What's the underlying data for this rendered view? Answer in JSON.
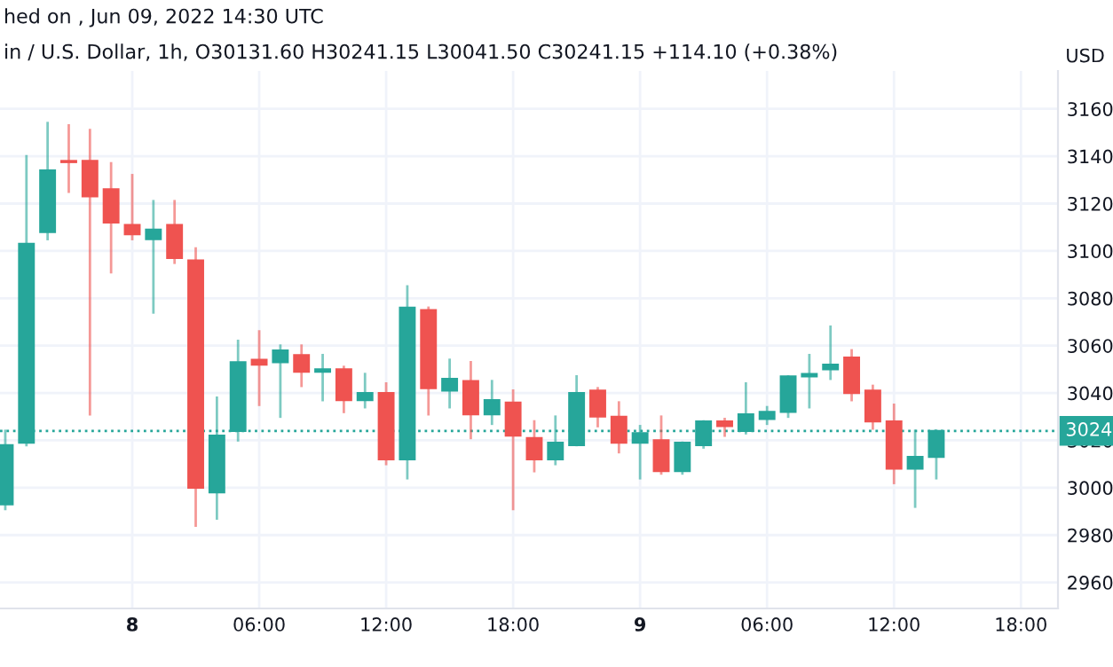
{
  "chart_data": {
    "type": "candlestick",
    "annotations": [
      "hed on , Jun 09, 2022 14:30 UTC",
      "in / U.S. Dollar, 1h, O30131.60 H30241.15 L30041.50 C30241.15 +114.10 (+0.38%)"
    ],
    "ylabel": "USD",
    "x": [
      "2022-06-07T18:00",
      "2022-06-07T19:00",
      "2022-06-07T20:00",
      "2022-06-07T21:00",
      "2022-06-07T22:00",
      "2022-06-07T23:00",
      "2022-06-08T00:00",
      "2022-06-08T01:00",
      "2022-06-08T02:00",
      "2022-06-08T03:00",
      "2022-06-08T04:00",
      "2022-06-08T05:00",
      "2022-06-08T06:00",
      "2022-06-08T07:00",
      "2022-06-08T08:00",
      "2022-06-08T09:00",
      "2022-06-08T10:00",
      "2022-06-08T11:00",
      "2022-06-08T12:00",
      "2022-06-08T13:00",
      "2022-06-08T14:00",
      "2022-06-08T15:00",
      "2022-06-08T16:00",
      "2022-06-08T17:00",
      "2022-06-08T18:00",
      "2022-06-08T19:00",
      "2022-06-08T20:00",
      "2022-06-08T21:00",
      "2022-06-08T22:00",
      "2022-06-08T23:00",
      "2022-06-09T00:00",
      "2022-06-09T01:00",
      "2022-06-09T02:00",
      "2022-06-09T03:00",
      "2022-06-09T04:00",
      "2022-06-09T05:00",
      "2022-06-09T06:00",
      "2022-06-09T07:00",
      "2022-06-09T08:00",
      "2022-06-09T09:00",
      "2022-06-09T10:00",
      "2022-06-09T11:00",
      "2022-06-09T12:00",
      "2022-06-09T13:00",
      "2022-06-09T14:00"
    ],
    "ohlc": [
      [
        2993,
        3024,
        2991,
        3018
      ],
      [
        3019,
        3140,
        3018,
        3103
      ],
      [
        3108,
        3154,
        3105,
        3134
      ],
      [
        3138,
        3153,
        3125,
        3137.5
      ],
      [
        3138,
        3151,
        3031,
        3123
      ],
      [
        3126,
        3137,
        3091,
        3112
      ],
      [
        3111,
        3132,
        3105,
        3107
      ],
      [
        3105,
        3121,
        3074,
        3109
      ],
      [
        3111,
        3121,
        3095,
        3097
      ],
      [
        3096,
        3101,
        2984,
        3000
      ],
      [
        2998,
        3038,
        2987,
        3022
      ],
      [
        3024,
        3062,
        3020,
        3053
      ],
      [
        3054,
        3066,
        3035,
        3052
      ],
      [
        3053,
        3060,
        3030,
        3058
      ],
      [
        3056,
        3060,
        3043,
        3049
      ],
      [
        3049,
        3056,
        3037,
        3050
      ],
      [
        3050,
        3051,
        3032,
        3037
      ],
      [
        3037,
        3048,
        3034,
        3040
      ],
      [
        3040,
        3044,
        3010,
        3012
      ],
      [
        3012,
        3085,
        3004,
        3076
      ],
      [
        3075,
        3076,
        3031,
        3042
      ],
      [
        3041,
        3054,
        3034,
        3046
      ],
      [
        3045,
        3053,
        3021,
        3031
      ],
      [
        3031,
        3045,
        3027,
        3037
      ],
      [
        3036,
        3041,
        2991,
        3022
      ],
      [
        3021,
        3028,
        3007,
        3012
      ],
      [
        3012,
        3030,
        3010,
        3019
      ],
      [
        3018,
        3047,
        3018,
        3040
      ],
      [
        3041,
        3042,
        3026,
        3030
      ],
      [
        3030,
        3036,
        3015,
        3019
      ],
      [
        3019,
        3026,
        3004,
        3023
      ],
      [
        3020,
        3030,
        3006,
        3007
      ],
      [
        3007,
        3019,
        3006,
        3019
      ],
      [
        3018,
        3028,
        3017,
        3028
      ],
      [
        3028,
        3029,
        3022,
        3026
      ],
      [
        3024,
        3044,
        3023,
        3031
      ],
      [
        3029,
        3034,
        3027,
        3032
      ],
      [
        3032,
        3047,
        3030,
        3047
      ],
      [
        3047,
        3056,
        3034,
        3048
      ],
      [
        3050,
        3068,
        3046,
        3052
      ],
      [
        3055,
        3058,
        3037,
        3040
      ],
      [
        3041,
        3043,
        3025,
        3028
      ],
      [
        3028,
        3035,
        3002,
        3008
      ],
      [
        3008,
        3024,
        2992,
        3013
      ],
      [
        3013,
        3024,
        3004,
        3024
      ]
    ],
    "colors": [
      "#26a69a",
      "#26a69a",
      "#26a69a",
      "#ef5350",
      "#ef5350",
      "#ef5350",
      "#ef5350",
      "#26a69a",
      "#ef5350",
      "#ef5350",
      "#26a69a",
      "#26a69a",
      "#ef5350",
      "#26a69a",
      "#ef5350",
      "#26a69a",
      "#ef5350",
      "#26a69a",
      "#ef5350",
      "#26a69a",
      "#ef5350",
      "#26a69a",
      "#ef5350",
      "#26a69a",
      "#ef5350",
      "#ef5350",
      "#26a69a",
      "#26a69a",
      "#ef5350",
      "#ef5350",
      "#26a69a",
      "#ef5350",
      "#26a69a",
      "#26a69a",
      "#ef5350",
      "#26a69a",
      "#26a69a",
      "#26a69a",
      "#26a69a",
      "#26a69a",
      "#ef5350",
      "#ef5350",
      "#ef5350",
      "#26a69a",
      "#26a69a"
    ],
    "xlim": [
      "2022-06-07T17:45",
      "2022-06-09T19:45"
    ],
    "xticks": [
      {
        "value": "2022-06-08T00:00",
        "label": "8"
      },
      {
        "value": "2022-06-08T06:00",
        "label": "06:00"
      },
      {
        "value": "2022-06-08T12:00",
        "label": "12:00"
      },
      {
        "value": "2022-06-08T18:00",
        "label": "18:00"
      },
      {
        "value": "2022-06-09T00:00",
        "label": "9"
      },
      {
        "value": "2022-06-09T06:00",
        "label": "06:00"
      },
      {
        "value": "2022-06-09T12:00",
        "label": "12:00"
      },
      {
        "value": "2022-06-09T18:00",
        "label": "18:00"
      }
    ],
    "ylim": [
      2949,
      3176
    ],
    "yticks": [
      2960,
      2980,
      3000,
      3020,
      3040,
      3060,
      3080,
      3100,
      3120,
      3140,
      3160
    ],
    "ref_lines": [
      {
        "axis": "y",
        "value": 3024,
        "label": "3024",
        "color": "#26a69a",
        "line_style": "dotted"
      }
    ],
    "grid": true,
    "legend": false
  }
}
